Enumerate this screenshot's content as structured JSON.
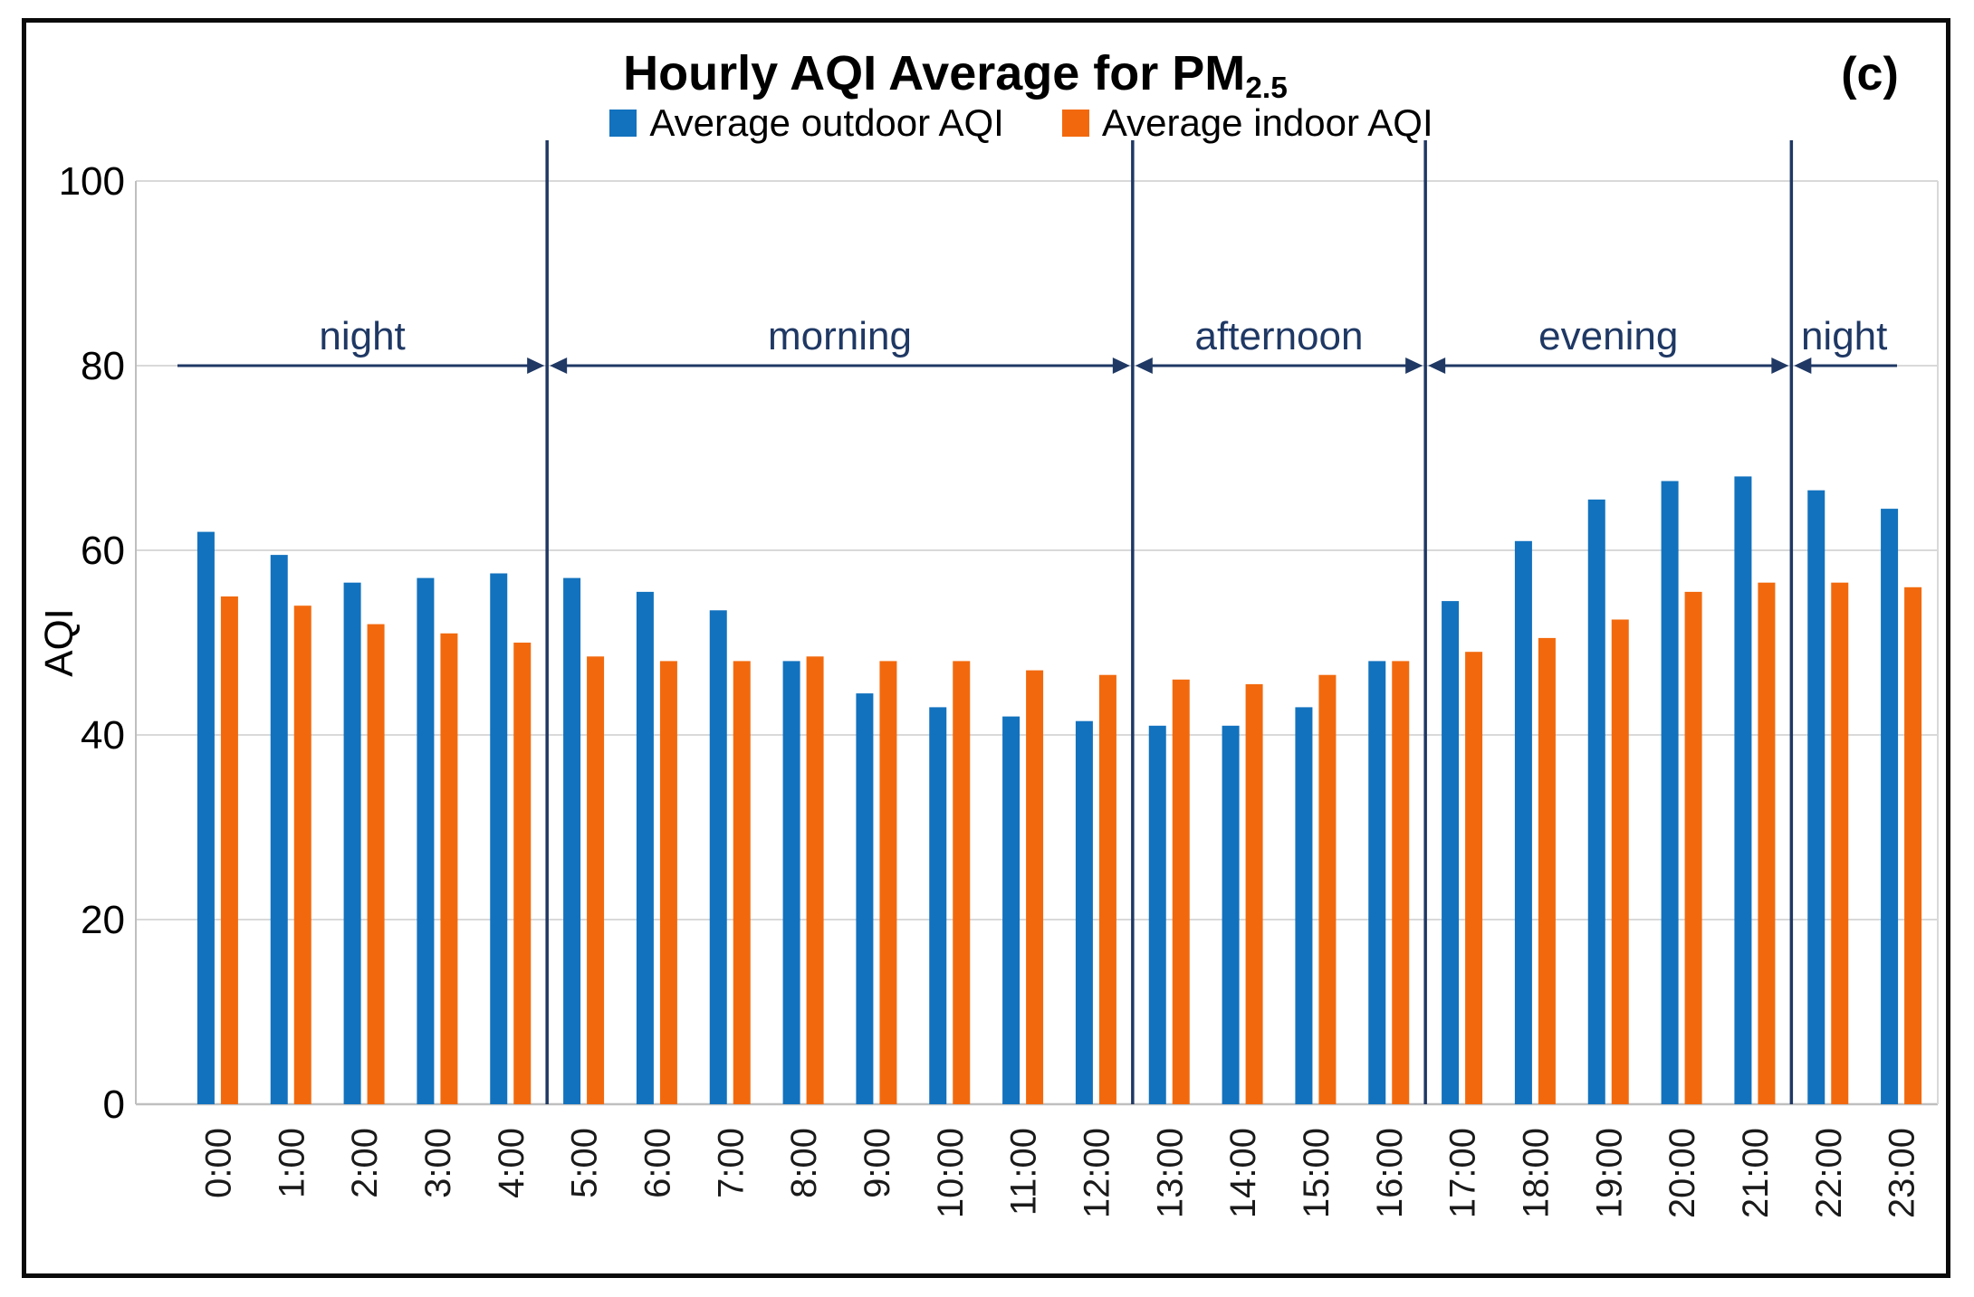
{
  "figure": {
    "panel_label": "(c)"
  },
  "chart_data": {
    "type": "bar",
    "title": {
      "text": "Hourly AQI Average for PM",
      "subscript": "2.5"
    },
    "ylabel": "AQI",
    "ylim": [
      0,
      100
    ],
    "yticks": [
      0,
      20,
      40,
      60,
      80,
      100
    ],
    "grid": true,
    "legend_position": "top-center",
    "categories": [
      "0:00",
      "1:00",
      "2:00",
      "3:00",
      "4:00",
      "5:00",
      "6:00",
      "7:00",
      "8:00",
      "9:00",
      "10:00",
      "11:00",
      "12:00",
      "13:00",
      "14:00",
      "15:00",
      "16:00",
      "17:00",
      "18:00",
      "19:00",
      "20:00",
      "21:00",
      "22:00",
      "23:00"
    ],
    "series": [
      {
        "name": "Average outdoor AQI",
        "color": "#1272BE",
        "values": [
          62,
          59.5,
          56.5,
          57,
          57.5,
          57,
          55.5,
          53.5,
          48,
          44.5,
          43,
          42,
          41.5,
          41,
          41,
          43,
          48,
          54.5,
          61,
          65.5,
          67.5,
          68,
          66.5,
          64.5
        ]
      },
      {
        "name": "Average indoor AQI",
        "color": "#F2690D",
        "values": [
          55,
          54,
          52,
          51,
          50,
          48.5,
          48,
          48,
          48.5,
          48,
          48,
          47,
          46.5,
          46,
          45.5,
          46.5,
          48,
          49,
          50.5,
          52.5,
          55.5,
          56.5,
          56.5,
          56
        ]
      }
    ],
    "periods": [
      {
        "label": "night",
        "start": 0,
        "end": 5
      },
      {
        "label": "morning",
        "start": 5,
        "end": 13
      },
      {
        "label": "afternoon",
        "start": 13,
        "end": 17
      },
      {
        "label": "evening",
        "start": 17,
        "end": 22
      },
      {
        "label": "night",
        "start": 22,
        "end": 24
      }
    ],
    "period_line_value": 80,
    "annotation_color": "#1F3864",
    "gridline_color": "#D9D9D9",
    "axis_line_color": "#BFBFBF",
    "tick_label_color": "#1a1a1a"
  }
}
